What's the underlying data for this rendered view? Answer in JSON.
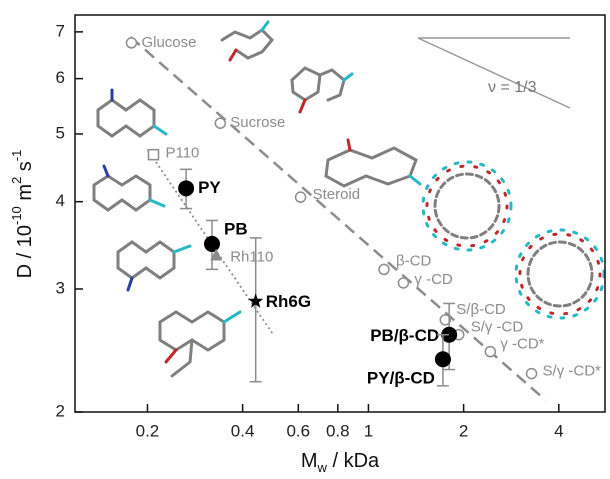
{
  "chart_data": {
    "type": "scatter",
    "xlabel": [
      "M",
      "w",
      " / kDa"
    ],
    "ylabel": [
      "D / 10",
      "-10",
      " m",
      "2",
      " s",
      "-1"
    ],
    "xscale": "log",
    "yscale": "log",
    "xlim": [
      0.118,
      5.6
    ],
    "ylim": [
      2,
      7.4
    ],
    "xticks": [
      0.2,
      0.4,
      0.6,
      0.8,
      1,
      2,
      4
    ],
    "yticks": [
      2,
      3,
      4,
      5,
      6,
      7
    ],
    "series": [
      {
        "name": "Glucose",
        "marker": "open-circle",
        "color": "#8c8c8c",
        "x": [
          0.178
        ],
        "values": [
          6.75
        ]
      },
      {
        "name": "Sucrose",
        "marker": "open-circle",
        "color": "#8c8c8c",
        "x": [
          0.34
        ],
        "values": [
          5.18
        ]
      },
      {
        "name": "Steroid",
        "marker": "open-circle",
        "color": "#8c8c8c",
        "x": [
          0.61
        ],
        "values": [
          4.06
        ]
      },
      {
        "name": "β-CD",
        "marker": "open-circle",
        "color": "#8c8c8c",
        "x": [
          1.12
        ],
        "values": [
          3.2
        ]
      },
      {
        "name": "γ -CD",
        "marker": "open-circle",
        "color": "#8c8c8c",
        "x": [
          1.29
        ],
        "values": [
          3.06
        ]
      },
      {
        "name": "S/β-CD",
        "marker": "open-circle",
        "color": "#8c8c8c",
        "x": [
          1.75
        ],
        "values": [
          2.71
        ]
      },
      {
        "name": "S/γ -CD",
        "marker": "open-circle",
        "color": "#8c8c8c",
        "x": [
          1.93
        ],
        "values": [
          2.58
        ]
      },
      {
        "name": "γ -CD*",
        "marker": "open-circle",
        "color": "#8c8c8c",
        "x": [
          2.43
        ],
        "values": [
          2.44
        ]
      },
      {
        "name": "S/γ -CD*",
        "marker": "open-circle",
        "color": "#8c8c8c",
        "x": [
          3.28
        ],
        "values": [
          2.27
        ]
      },
      {
        "name": "P110",
        "marker": "open-square",
        "color": "#8c8c8c",
        "x": [
          0.209
        ],
        "values": [
          4.67
        ]
      },
      {
        "name": "PY",
        "marker": "filled-circle",
        "color": "#000000",
        "x": [
          0.265
        ],
        "values": [
          4.18
        ],
        "errors": [
          0.27
        ]
      },
      {
        "name": "PB",
        "marker": "filled-circle",
        "color": "#000000",
        "x": [
          0.32
        ],
        "values": [
          3.48
        ],
        "errors": [
          0.28
        ]
      },
      {
        "name": "Rh110",
        "marker": "filled-triangle",
        "color": "#8c8c8c",
        "x": [
          0.33
        ],
        "values": [
          3.35
        ]
      },
      {
        "name": "Rh6G",
        "marker": "star",
        "color": "#000000",
        "x": [
          0.44
        ],
        "values": [
          2.88
        ],
        "errors": [
          0.67
        ]
      },
      {
        "name": "PB/β-CD",
        "marker": "filled-circle",
        "color": "#000000",
        "x": [
          1.8
        ],
        "values": [
          2.58
        ],
        "errors": [
          0.28
        ]
      },
      {
        "name": "PY/β-CD",
        "marker": "filled-circle",
        "color": "#000000",
        "x": [
          1.72
        ],
        "values": [
          2.38
        ],
        "errors": [
          0.2
        ]
      }
    ],
    "fit_lines": [
      {
        "style": "dashed",
        "color": "#8c8c8c",
        "x": [
          0.177,
          3.63
        ],
        "values": [
          6.88,
          2.08
        ]
      },
      {
        "style": "dotted",
        "color": "#8c8c8c",
        "x": [
          0.2,
          0.5
        ],
        "values": [
          4.75,
          2.58
        ]
      }
    ],
    "annotation": "ν = 1/3"
  }
}
